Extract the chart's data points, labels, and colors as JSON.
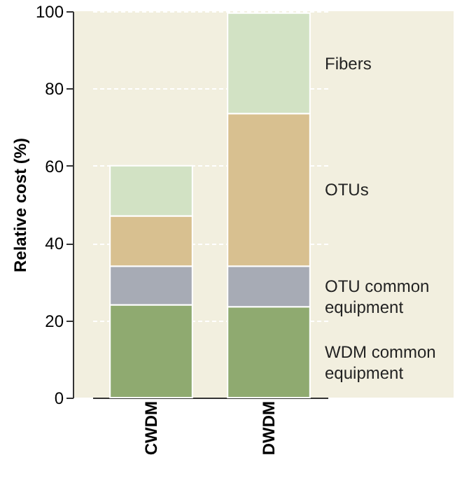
{
  "chart_data": {
    "type": "bar",
    "ylabel": "Relative cost (%)",
    "categories": [
      "CWDM",
      "DWDM"
    ],
    "stacked": true,
    "legend": false,
    "grid": "y",
    "ylim": [
      0,
      100
    ],
    "yticks": [
      0,
      20,
      40,
      60,
      80,
      100
    ],
    "series": [
      {
        "name": "WDM common equipment",
        "color": "#8faa70",
        "values": [
          24,
          23.5
        ]
      },
      {
        "name": "OTU common equipment",
        "color": "#a7abb5",
        "values": [
          10,
          10.5
        ]
      },
      {
        "name": "OTUs",
        "color": "#d8c090",
        "values": [
          13,
          39.5
        ]
      },
      {
        "name": "Fibers",
        "color": "#d2e2c4",
        "values": [
          13,
          26
        ]
      }
    ]
  }
}
